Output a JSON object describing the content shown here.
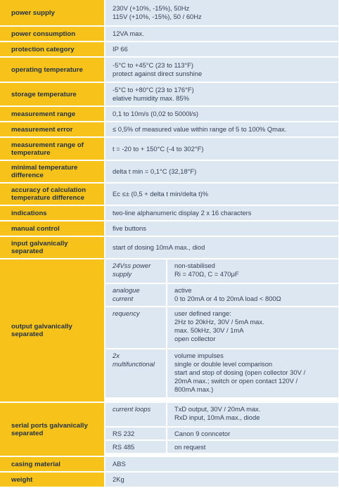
{
  "rows": [
    {
      "label": "power supply",
      "lines": [
        "230V (+10%, -15%), 50Hz",
        "115V (+10%, -15%), 50 / 60Hz"
      ]
    },
    {
      "label": "power consumption",
      "lines": [
        "12VA max."
      ]
    },
    {
      "label": "protection category",
      "lines": [
        "IP 66"
      ]
    },
    {
      "label": "operating temperature",
      "lines": [
        "-5°C to +45°C (23 to 113°F)",
        "protect against direct sunshine"
      ]
    },
    {
      "label": "storage temperature",
      "lines": [
        "-5°C to +80°C (23 to 176°F)",
        "elative humidity max. 85%"
      ]
    },
    {
      "label": "measurement range",
      "lines": [
        "0,1 to 10m/s (0,02 to 5000l/s)"
      ]
    },
    {
      "label": "measurement error",
      "lines": [
        "≤ 0,5% of measured value within range of  5 to 100% Qmax."
      ]
    },
    {
      "label": "measurement range of temperature",
      "lines": [
        "t = -20 to + 150°C (-4 to 302°F)"
      ]
    },
    {
      "label": "minimal temperature difference",
      "lines": [
        "delta t min = 0,1°C (32,18°F)"
      ]
    },
    {
      "label": "accuracy of calculation temperature difference",
      "lines": [
        "Ec ≤± (0,5 + delta t min/delta t)%"
      ]
    },
    {
      "label": "indications",
      "lines": [
        "two-line alphanumeric display 2 x 16 characters"
      ]
    },
    {
      "label": "manual control",
      "lines": [
        "five buttons"
      ]
    },
    {
      "label": "input galvanically separated",
      "lines": [
        "start of dosing 10mA max., diod"
      ]
    }
  ],
  "output": {
    "label": "output galvanically separated",
    "items": [
      {
        "key": "24Vss power supply",
        "lines": [
          "non-stabilised",
          "Ri = 470Ω, C = 470µF"
        ]
      },
      {
        "key": "analogue current",
        "lines": [
          "active",
          "0 to 20mA or 4 to 20mA load < 800Ω"
        ]
      },
      {
        "key": "requency",
        "lines": [
          "user defined range:",
          "2Hz to 20kHz, 30V / 5mA max.",
          "max. 50kHz, 30V / 1mA",
          "open collector"
        ]
      },
      {
        "key": "2x multifunctional",
        "lines": [
          "volume impulses",
          "single or double level comparison",
          "start and stop of dosing (open collector 30V /",
          "20mA max.; switch or open contact 120V /",
          "800mA max.)"
        ]
      }
    ]
  },
  "serial": {
    "label": "serial ports galvanically separated",
    "items": [
      {
        "key": "current loops",
        "lines": [
          "TxD output, 30V / 20mA max.",
          "RxD input, 10mA max., diode"
        ]
      },
      {
        "key": "RS 232",
        "lines": [
          "Canon 9 conncetor"
        ]
      },
      {
        "key": "RS 485",
        "lines": [
          "on request"
        ]
      }
    ]
  },
  "tail": [
    {
      "label": "casing material",
      "lines": [
        "ABS"
      ]
    },
    {
      "label": "weight",
      "lines": [
        "2Kg"
      ]
    }
  ]
}
